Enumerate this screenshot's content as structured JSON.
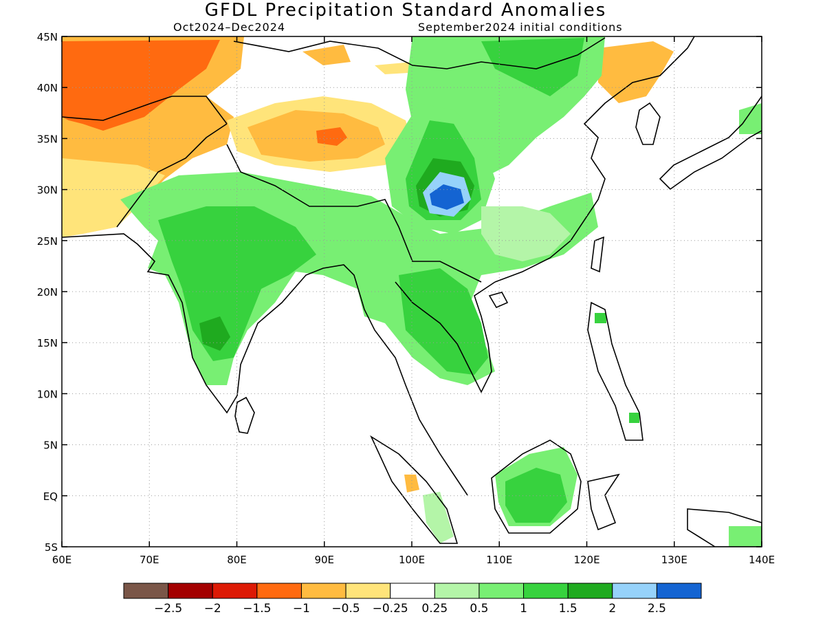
{
  "title": "GFDL Precipitation Standard Anomalies",
  "subtitle_left": "Oct2024–Dec2024",
  "subtitle_right": "September2024 initial conditions",
  "axes": {
    "lon_ticks": [
      "60E",
      "70E",
      "80E",
      "90E",
      "100E",
      "110E",
      "120E",
      "130E",
      "140E"
    ],
    "lat_ticks": [
      "45N",
      "40N",
      "35N",
      "30N",
      "25N",
      "20N",
      "15N",
      "10N",
      "5N",
      "EQ",
      "5S"
    ],
    "lon_range": [
      60,
      140
    ],
    "lat_range": [
      -5,
      45
    ],
    "grid": "dotted"
  },
  "colorbar": {
    "colors": [
      "#7a5648",
      "#a30000",
      "#dd1a05",
      "#ff6a10",
      "#ffbb40",
      "#ffe47a",
      "#ffffff",
      "#b4f5a8",
      "#78ef73",
      "#37d23e",
      "#1faa1f",
      "#96d2fa",
      "#1464d2"
    ],
    "labels": [
      "−2.5",
      "−2",
      "−1.5",
      "−1",
      "−0.5",
      "−0.25",
      "0.25",
      "0.5",
      "1",
      "1.5",
      "2",
      "2.5"
    ]
  }
}
